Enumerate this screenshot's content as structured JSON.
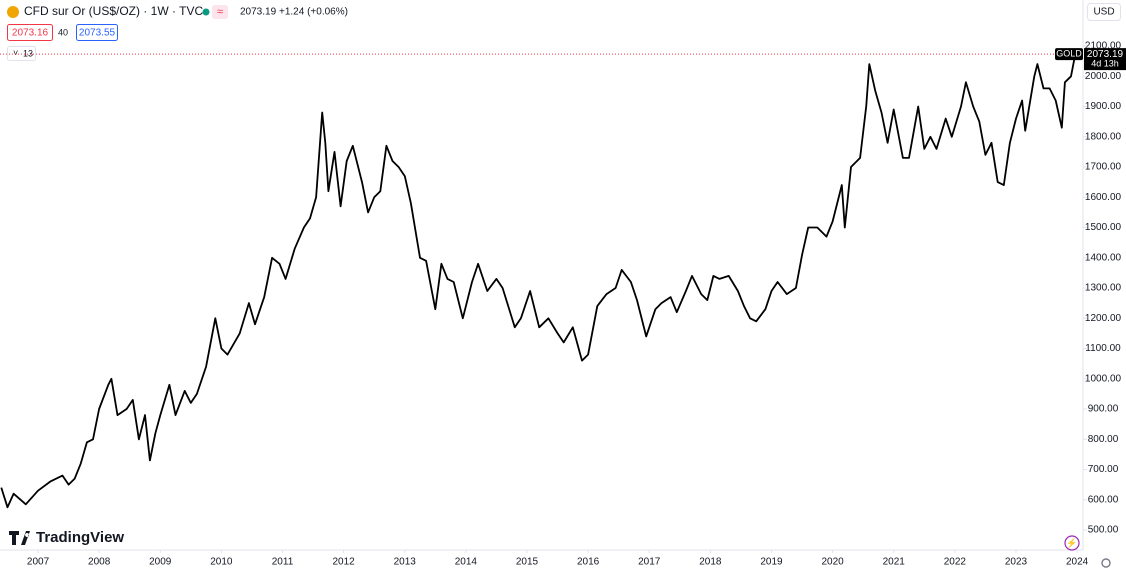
{
  "header": {
    "symbol": "CFD sur Or (US$/OZ) · 1W · TVC",
    "price": "2073.19",
    "change": "+1.24 (+0.06%)",
    "bid": "2073.16",
    "spread": "40",
    "ask": "2073.55",
    "indicators": "13",
    "currency": "USD",
    "brand": "TradingView"
  },
  "chart_data": {
    "type": "line",
    "color": "#000000",
    "grid": false,
    "ticker": "GOLD",
    "last_price": 2073.19,
    "countdown": "4d 13h",
    "xlim": [
      2006.378,
      2024.08
    ],
    "ylim": [
      500,
      2100
    ],
    "xticks": [
      2007,
      2008,
      2009,
      2010,
      2011,
      2012,
      2013,
      2014,
      2015,
      2016,
      2017,
      2018,
      2019,
      2020,
      2021,
      2022,
      2023,
      2024
    ],
    "yticks": [
      {
        "value": 500,
        "label": "500.00"
      },
      {
        "value": 600,
        "label": "600.00"
      },
      {
        "value": 700,
        "label": "700.00"
      },
      {
        "value": 800,
        "label": "800.00"
      },
      {
        "value": 900,
        "label": "900.00"
      },
      {
        "value": 1000,
        "label": "1000.00"
      },
      {
        "value": 1100,
        "label": "1100.00"
      },
      {
        "value": 1200,
        "label": "1200.00"
      },
      {
        "value": 1300,
        "label": "1300.00"
      },
      {
        "value": 1400,
        "label": "1400.00"
      },
      {
        "value": 1500,
        "label": "1500.00"
      },
      {
        "value": 1600,
        "label": "1600.00"
      },
      {
        "value": 1700,
        "label": "1700.00"
      },
      {
        "value": 1800,
        "label": "1800.00"
      },
      {
        "value": 1900,
        "label": "1900.00"
      },
      {
        "value": 2000,
        "label": "2000.00"
      },
      {
        "value": 2100,
        "label": "2100.00"
      }
    ],
    "x": [
      2006.4,
      2006.5,
      2006.6,
      2006.8,
      2007.0,
      2007.2,
      2007.4,
      2007.5,
      2007.6,
      2007.7,
      2007.8,
      2007.9,
      2008.0,
      2008.15,
      2008.2,
      2008.3,
      2008.45,
      2008.55,
      2008.65,
      2008.75,
      2008.83,
      2008.92,
      2009.0,
      2009.15,
      2009.25,
      2009.4,
      2009.5,
      2009.6,
      2009.75,
      2009.9,
      2010.0,
      2010.1,
      2010.3,
      2010.45,
      2010.55,
      2010.7,
      2010.83,
      2010.95,
      2011.05,
      2011.2,
      2011.35,
      2011.45,
      2011.55,
      2011.65,
      2011.7,
      2011.75,
      2011.85,
      2011.95,
      2012.05,
      2012.15,
      2012.3,
      2012.4,
      2012.5,
      2012.6,
      2012.7,
      2012.8,
      2012.9,
      2013.0,
      2013.1,
      2013.25,
      2013.35,
      2013.5,
      2013.6,
      2013.7,
      2013.8,
      2013.95,
      2014.1,
      2014.2,
      2014.35,
      2014.5,
      2014.6,
      2014.8,
      2014.9,
      2015.05,
      2015.2,
      2015.35,
      2015.5,
      2015.6,
      2015.75,
      2015.9,
      2016.0,
      2016.15,
      2016.3,
      2016.45,
      2016.55,
      2016.7,
      2016.8,
      2016.95,
      2017.1,
      2017.2,
      2017.35,
      2017.45,
      2017.6,
      2017.7,
      2017.85,
      2017.95,
      2018.05,
      2018.15,
      2018.3,
      2018.45,
      2018.55,
      2018.65,
      2018.75,
      2018.9,
      2019.0,
      2019.1,
      2019.25,
      2019.4,
      2019.5,
      2019.6,
      2019.75,
      2019.9,
      2020.0,
      2020.15,
      2020.2,
      2020.3,
      2020.45,
      2020.55,
      2020.6,
      2020.7,
      2020.8,
      2020.9,
      2021.0,
      2021.15,
      2021.25,
      2021.4,
      2021.5,
      2021.6,
      2021.7,
      2021.85,
      2021.95,
      2022.1,
      2022.18,
      2022.3,
      2022.4,
      2022.5,
      2022.6,
      2022.7,
      2022.8,
      2022.9,
      2023.0,
      2023.1,
      2023.15,
      2023.3,
      2023.35,
      2023.45,
      2023.55,
      2023.65,
      2023.75,
      2023.8,
      2023.9,
      2023.97
    ],
    "values": [
      640,
      575,
      620,
      585,
      630,
      660,
      680,
      650,
      670,
      720,
      790,
      800,
      900,
      980,
      1000,
      880,
      900,
      930,
      800,
      880,
      730,
      820,
      880,
      980,
      880,
      960,
      920,
      950,
      1040,
      1200,
      1100,
      1080,
      1150,
      1250,
      1180,
      1270,
      1400,
      1380,
      1330,
      1430,
      1500,
      1530,
      1600,
      1880,
      1780,
      1620,
      1750,
      1570,
      1720,
      1770,
      1650,
      1550,
      1600,
      1620,
      1770,
      1720,
      1700,
      1670,
      1580,
      1400,
      1390,
      1230,
      1380,
      1330,
      1320,
      1200,
      1320,
      1380,
      1290,
      1330,
      1300,
      1170,
      1200,
      1290,
      1170,
      1200,
      1150,
      1120,
      1170,
      1060,
      1080,
      1240,
      1280,
      1300,
      1360,
      1320,
      1260,
      1140,
      1230,
      1250,
      1270,
      1220,
      1290,
      1340,
      1280,
      1260,
      1340,
      1330,
      1340,
      1290,
      1240,
      1200,
      1190,
      1230,
      1290,
      1320,
      1280,
      1300,
      1410,
      1500,
      1500,
      1470,
      1520,
      1640,
      1500,
      1700,
      1730,
      1900,
      2040,
      1950,
      1880,
      1780,
      1890,
      1730,
      1730,
      1900,
      1760,
      1800,
      1760,
      1860,
      1800,
      1900,
      1980,
      1900,
      1850,
      1740,
      1780,
      1650,
      1640,
      1780,
      1860,
      1920,
      1820,
      2000,
      2040,
      1960,
      1960,
      1920,
      1830,
      1980,
      2000,
      2073.19
    ]
  }
}
